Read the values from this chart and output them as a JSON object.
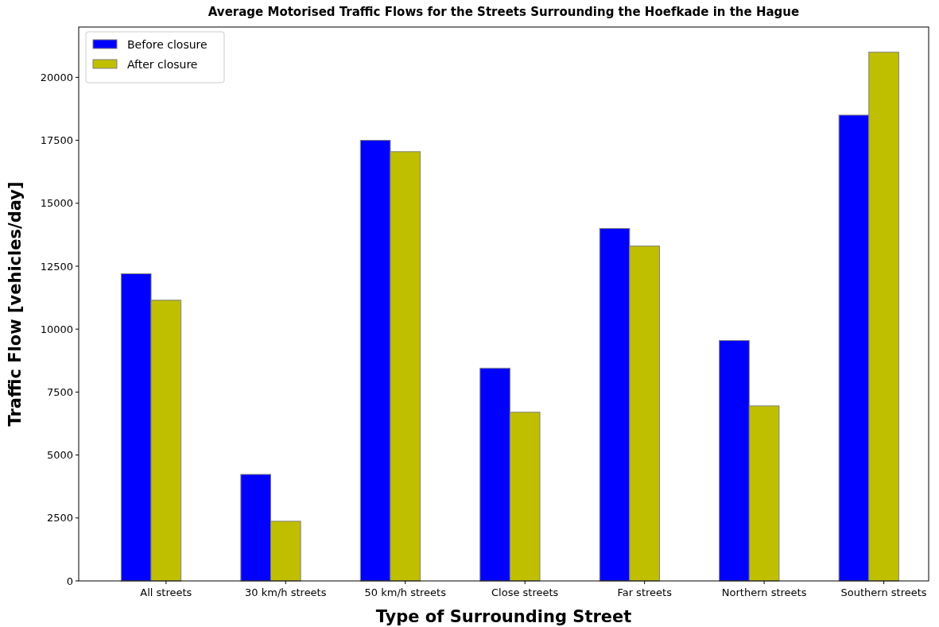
{
  "chart_data": {
    "type": "bar",
    "title": "Average Motorised Traffic Flows for the Streets Surrounding the Hoefkade in the Hague",
    "xlabel": "Type of Surrounding Street",
    "ylabel": "Traffic Flow [vehicles/day]",
    "categories": [
      "All streets",
      "30 km/h streets",
      "50 km/h streets",
      "Close streets",
      "Far streets",
      "Northern streets",
      "Southern streets"
    ],
    "series": [
      {
        "name": "Before closure",
        "color": "#0000ff",
        "values": [
          12200,
          4230,
          17500,
          8450,
          14000,
          9550,
          18500
        ]
      },
      {
        "name": "After closure",
        "color": "#bfbf00",
        "values": [
          11150,
          2370,
          17050,
          6700,
          13300,
          6950,
          21000
        ]
      }
    ],
    "ylim": [
      0,
      22000
    ],
    "yticks": [
      0,
      2500,
      5000,
      7500,
      10000,
      12500,
      15000,
      17500,
      20000
    ],
    "grid": false,
    "legend": "top left"
  }
}
